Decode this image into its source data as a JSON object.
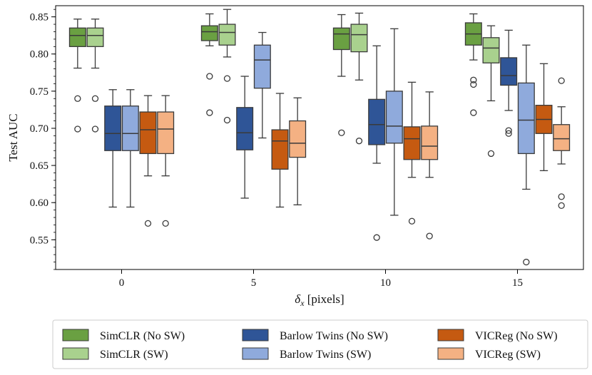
{
  "chart_data": {
    "type": "boxplot",
    "title": "",
    "xlabel_symbol": "δ",
    "xlabel_sub": "x",
    "xlabel_rest": " [pixels]",
    "ylabel": "Test AUC",
    "ylim": [
      0.51,
      0.865
    ],
    "yticks": [
      0.55,
      0.6,
      0.65,
      0.7,
      0.75,
      0.8,
      0.85
    ],
    "ytick_labels": [
      "0.55",
      "0.60",
      "0.65",
      "0.70",
      "0.75",
      "0.80",
      "0.85"
    ],
    "categories": [
      "0",
      "5",
      "10",
      "15"
    ],
    "legend_position": "bottom",
    "series": [
      {
        "name": "SimCLR (No SW)",
        "color": "#6aa042",
        "boxes": [
          {
            "whislo": 0.781,
            "q1": 0.81,
            "med": 0.825,
            "q3": 0.835,
            "whishi": 0.847,
            "fliers": [
              0.74,
              0.699
            ]
          },
          {
            "whislo": 0.811,
            "q1": 0.818,
            "med": 0.83,
            "q3": 0.838,
            "whishi": 0.854,
            "fliers": [
              0.77,
              0.721
            ]
          },
          {
            "whislo": 0.77,
            "q1": 0.806,
            "med": 0.827,
            "q3": 0.835,
            "whishi": 0.853,
            "fliers": [
              0.694
            ]
          },
          {
            "whislo": 0.792,
            "q1": 0.812,
            "med": 0.827,
            "q3": 0.842,
            "whishi": 0.854,
            "fliers": [
              0.765,
              0.759,
              0.721
            ]
          }
        ]
      },
      {
        "name": "SimCLR (SW)",
        "color": "#a9d18e",
        "boxes": [
          {
            "whislo": 0.781,
            "q1": 0.81,
            "med": 0.825,
            "q3": 0.835,
            "whishi": 0.847,
            "fliers": [
              0.74,
              0.699
            ]
          },
          {
            "whislo": 0.796,
            "q1": 0.812,
            "med": 0.829,
            "q3": 0.84,
            "whishi": 0.86,
            "fliers": [
              0.767,
              0.711
            ]
          },
          {
            "whislo": 0.765,
            "q1": 0.803,
            "med": 0.826,
            "q3": 0.84,
            "whishi": 0.855,
            "fliers": [
              0.683
            ]
          },
          {
            "whislo": 0.737,
            "q1": 0.788,
            "med": 0.808,
            "q3": 0.822,
            "whishi": 0.838,
            "fliers": [
              0.666
            ]
          }
        ]
      },
      {
        "name": "Barlow Twins (No SW)",
        "color": "#2f5597",
        "boxes": [
          {
            "whislo": 0.594,
            "q1": 0.67,
            "med": 0.693,
            "q3": 0.73,
            "whishi": 0.752,
            "fliers": []
          },
          {
            "whislo": 0.606,
            "q1": 0.671,
            "med": 0.694,
            "q3": 0.728,
            "whishi": 0.77,
            "fliers": []
          },
          {
            "whislo": 0.653,
            "q1": 0.678,
            "med": 0.705,
            "q3": 0.739,
            "whishi": 0.811,
            "fliers": [
              0.553
            ]
          },
          {
            "whislo": 0.724,
            "q1": 0.758,
            "med": 0.771,
            "q3": 0.795,
            "whishi": 0.832,
            "fliers": [
              0.697,
              0.693
            ]
          }
        ]
      },
      {
        "name": "Barlow Twins (SW)",
        "color": "#8faadc",
        "boxes": [
          {
            "whislo": 0.594,
            "q1": 0.67,
            "med": 0.693,
            "q3": 0.73,
            "whishi": 0.752,
            "fliers": []
          },
          {
            "whislo": 0.687,
            "q1": 0.754,
            "med": 0.792,
            "q3": 0.812,
            "whishi": 0.829,
            "fliers": []
          },
          {
            "whislo": 0.583,
            "q1": 0.68,
            "med": 0.703,
            "q3": 0.75,
            "whishi": 0.834,
            "fliers": []
          },
          {
            "whislo": 0.618,
            "q1": 0.666,
            "med": 0.711,
            "q3": 0.761,
            "whishi": 0.812,
            "fliers": [
              0.52
            ]
          }
        ]
      },
      {
        "name": "VICReg (No SW)",
        "color": "#c55a11",
        "boxes": [
          {
            "whislo": 0.636,
            "q1": 0.666,
            "med": 0.698,
            "q3": 0.722,
            "whishi": 0.744,
            "fliers": [
              0.572
            ]
          },
          {
            "whislo": 0.594,
            "q1": 0.645,
            "med": 0.683,
            "q3": 0.698,
            "whishi": 0.747,
            "fliers": []
          },
          {
            "whislo": 0.634,
            "q1": 0.658,
            "med": 0.686,
            "q3": 0.702,
            "whishi": 0.762,
            "fliers": [
              0.575
            ]
          },
          {
            "whislo": 0.643,
            "q1": 0.693,
            "med": 0.712,
            "q3": 0.731,
            "whishi": 0.787,
            "fliers": []
          }
        ]
      },
      {
        "name": "VICReg (SW)",
        "color": "#f4b183",
        "boxes": [
          {
            "whislo": 0.636,
            "q1": 0.666,
            "med": 0.699,
            "q3": 0.722,
            "whishi": 0.744,
            "fliers": [
              0.572
            ]
          },
          {
            "whislo": 0.597,
            "q1": 0.661,
            "med": 0.68,
            "q3": 0.71,
            "whishi": 0.741,
            "fliers": []
          },
          {
            "whislo": 0.634,
            "q1": 0.658,
            "med": 0.676,
            "q3": 0.703,
            "whishi": 0.749,
            "fliers": [
              0.555
            ]
          },
          {
            "whislo": 0.652,
            "q1": 0.67,
            "med": 0.686,
            "q3": 0.705,
            "whishi": 0.729,
            "fliers": [
              0.764,
              0.608,
              0.596
            ]
          }
        ]
      }
    ]
  }
}
